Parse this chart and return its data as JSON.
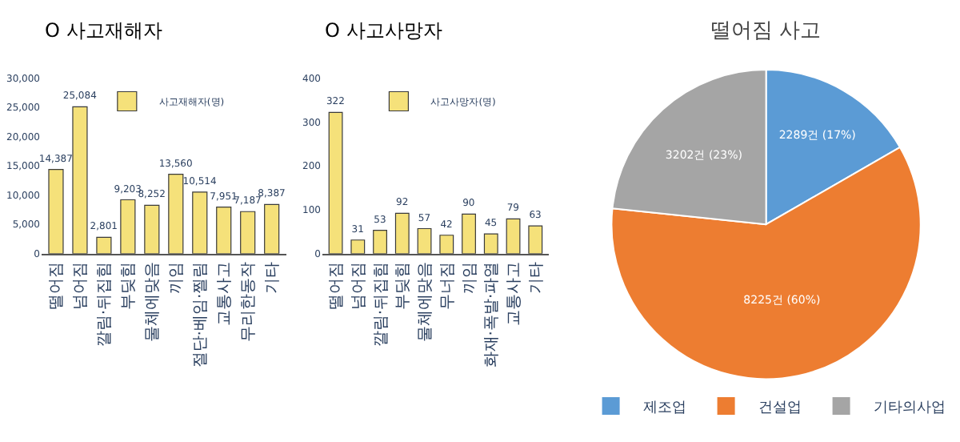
{
  "chart_data": [
    {
      "type": "bar",
      "title": "O 사고재해자",
      "categories": [
        "떨어짐",
        "넘어짐",
        "깔림·뒤집힘",
        "부딪힘",
        "물체에맞음",
        "끼임",
        "절단·베임·찔림",
        "교통사고",
        "무리한동작",
        "기타"
      ],
      "series": [
        {
          "name": "사고재해자(명)",
          "color": "#f5e17a",
          "values": [
            14387,
            25084,
            2801,
            9203,
            8252,
            13560,
            10514,
            7951,
            7187,
            8387
          ],
          "value_labels": [
            "14,387",
            "25,084",
            "2,801",
            "9,203",
            "8,252",
            "13,560",
            "10,514",
            "7,951",
            "7,187",
            "8,387"
          ]
        }
      ],
      "ylim": [
        0,
        30000
      ],
      "yticks": [
        {
          "value": 0,
          "label": "0"
        },
        {
          "value": 5000,
          "label": "5,000"
        },
        {
          "value": 10000,
          "label": "10,000"
        },
        {
          "value": 15000,
          "label": "15,000"
        },
        {
          "value": 20000,
          "label": "20,000"
        },
        {
          "value": 25000,
          "label": "25,000"
        },
        {
          "value": 30000,
          "label": "30,000"
        }
      ],
      "legend": "top"
    },
    {
      "type": "bar",
      "title": "O 사고사망자",
      "categories": [
        "떨어짐",
        "넘어짐",
        "깔림·뒤집힘",
        "부딪힘",
        "물체에맞음",
        "무너짐",
        "끼임",
        "화재·폭발·파열",
        "교통사고",
        "기타"
      ],
      "series": [
        {
          "name": "사고사망자(명)",
          "color": "#f5e17a",
          "values": [
            322,
            31,
            53,
            92,
            57,
            42,
            90,
            45,
            79,
            63
          ]
        }
      ],
      "data_labels": true,
      "ylim": [
        0,
        400
      ],
      "yticks": [
        0,
        100,
        200,
        300,
        400
      ],
      "legend": "top"
    },
    {
      "type": "pie",
      "title": "떨어짐 사고",
      "categories": [
        "제조업",
        "건설업",
        "기타의사업"
      ],
      "values": [
        2289,
        8225,
        3202
      ],
      "colors": [
        "#5b9bd5",
        "#ed7d31",
        "#a5a5a5"
      ],
      "value_labels": [
        "2289건 (17%)",
        "8225건 (60%)",
        "3202건 (23%)"
      ],
      "legend": "bottom"
    }
  ]
}
